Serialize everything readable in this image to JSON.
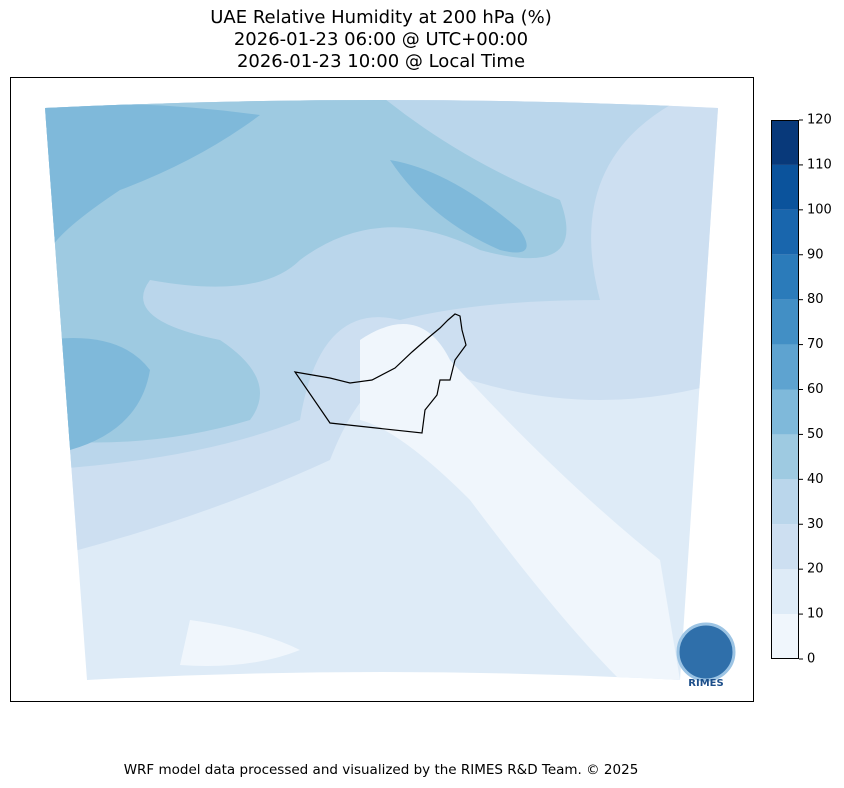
{
  "header": {
    "title_lines": [
      "UAE Relative Humidity at 200 hPa (%)",
      "2026-01-23 06:00 @ UTC+00:00",
      "2026-01-23 10:00 @ Local Time"
    ]
  },
  "colorbar": {
    "ticks": [
      0,
      10,
      20,
      30,
      40,
      50,
      60,
      70,
      80,
      90,
      100,
      110,
      120
    ],
    "colors": [
      "#f0f6fc",
      "#deebf7",
      "#cddff1",
      "#bad6eb",
      "#9ecae1",
      "#7fb9da",
      "#5ea3d0",
      "#428fc5",
      "#2b7bba",
      "#1966ad",
      "#0b539c",
      "#08397a"
    ]
  },
  "logo": {
    "text": "RIMES"
  },
  "footer": {
    "text": "WRF model data processed and visualized by the RIMES R&D Team. © 2025"
  }
}
